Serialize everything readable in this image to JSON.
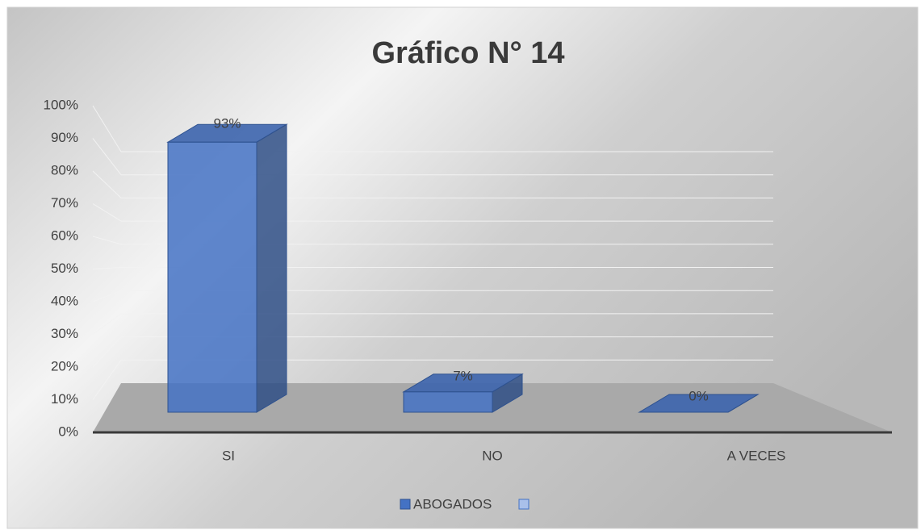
{
  "chart_data": {
    "type": "bar3d",
    "title": "Gráfico N° 14",
    "categories": [
      "SI",
      "NO",
      "A VECES"
    ],
    "series": [
      {
        "name": "ABOGADOS",
        "color": "#4472c4",
        "values": [
          93,
          7,
          0
        ],
        "value_labels": [
          "93%",
          "7%",
          "0%"
        ]
      }
    ],
    "ylim": [
      0,
      100
    ],
    "yticks": [
      {
        "value": 0,
        "label": "0%"
      },
      {
        "value": 10,
        "label": "10%"
      },
      {
        "value": 20,
        "label": "20%"
      },
      {
        "value": 30,
        "label": "30%"
      },
      {
        "value": 40,
        "label": "40%"
      },
      {
        "value": 50,
        "label": "50%"
      },
      {
        "value": 60,
        "label": "60%"
      },
      {
        "value": 70,
        "label": "70%"
      },
      {
        "value": 80,
        "label": "80%"
      },
      {
        "value": 90,
        "label": "90%"
      },
      {
        "value": 100,
        "label": "100%"
      }
    ],
    "grid": true
  }
}
